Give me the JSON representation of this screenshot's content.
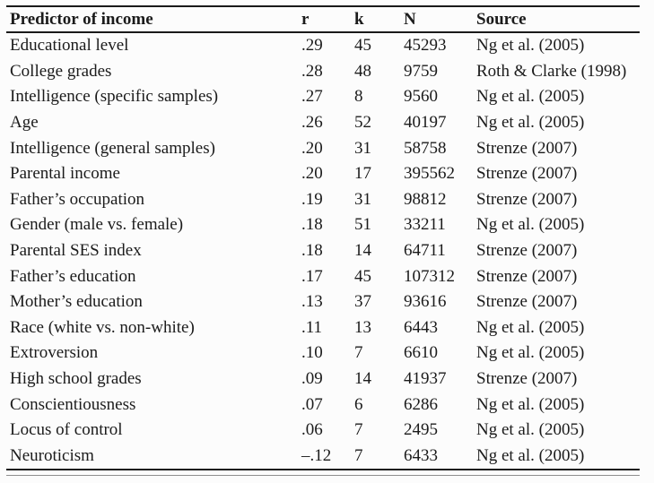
{
  "page": {
    "background": "#fcfcfc",
    "text_color": "#1b1b1b",
    "rule_color": "#1a1a1a",
    "thin_rule_color": "#8f8f8f"
  },
  "table": {
    "columns": [
      "Predictor of income",
      "r",
      "k",
      "N",
      "Source"
    ],
    "row_keys": [
      "predictor",
      "r",
      "k",
      "N",
      "source"
    ],
    "rows": [
      {
        "predictor": "Educational level",
        "r": ".29",
        "k": "45",
        "N": "45293",
        "source": "Ng et al. (2005)"
      },
      {
        "predictor": "College grades",
        "r": ".28",
        "k": "48",
        "N": "9759",
        "source": "Roth & Clarke (1998)"
      },
      {
        "predictor": "Intelligence (specific samples)",
        "r": ".27",
        "k": "8",
        "N": "9560",
        "source": "Ng et al. (2005)"
      },
      {
        "predictor": "Age",
        "r": ".26",
        "k": "52",
        "N": "40197",
        "source": "Ng et al. (2005)"
      },
      {
        "predictor": "Intelligence (general samples)",
        "r": ".20",
        "k": "31",
        "N": "58758",
        "source": "Strenze (2007)"
      },
      {
        "predictor": "Parental income",
        "r": ".20",
        "k": "17",
        "N": "395562",
        "source": "Strenze (2007)"
      },
      {
        "predictor": "Father’s occupation",
        "r": ".19",
        "k": "31",
        "N": "98812",
        "source": "Strenze (2007)"
      },
      {
        "predictor": "Gender (male vs. female)",
        "r": ".18",
        "k": "51",
        "N": "33211",
        "source": "Ng et al. (2005)"
      },
      {
        "predictor": "Parental SES index",
        "r": ".18",
        "k": "14",
        "N": "64711",
        "source": "Strenze (2007)"
      },
      {
        "predictor": "Father’s education",
        "r": ".17",
        "k": "45",
        "N": "107312",
        "source": "Strenze (2007)"
      },
      {
        "predictor": "Mother’s education",
        "r": ".13",
        "k": "37",
        "N": "93616",
        "source": "Strenze (2007)"
      },
      {
        "predictor": "Race (white vs. non-white)",
        "r": ".11",
        "k": "13",
        "N": "6443",
        "source": "Ng et al. (2005)"
      },
      {
        "predictor": "Extroversion",
        "r": ".10",
        "k": "7",
        "N": "6610",
        "source": "Ng et al. (2005)"
      },
      {
        "predictor": "High school grades",
        "r": ".09",
        "k": "14",
        "N": "41937",
        "source": "Strenze (2007)"
      },
      {
        "predictor": "Conscientiousness",
        "r": ".07",
        "k": "6",
        "N": "6286",
        "source": "Ng et al. (2005)"
      },
      {
        "predictor": "Locus of control",
        "r": ".06",
        "k": "7",
        "N": "2495",
        "source": "Ng et al. (2005)"
      },
      {
        "predictor": "Neuroticism",
        "r": "–.12",
        "k": "7",
        "N": "6433",
        "source": "Ng et al. (2005)"
      }
    ]
  }
}
